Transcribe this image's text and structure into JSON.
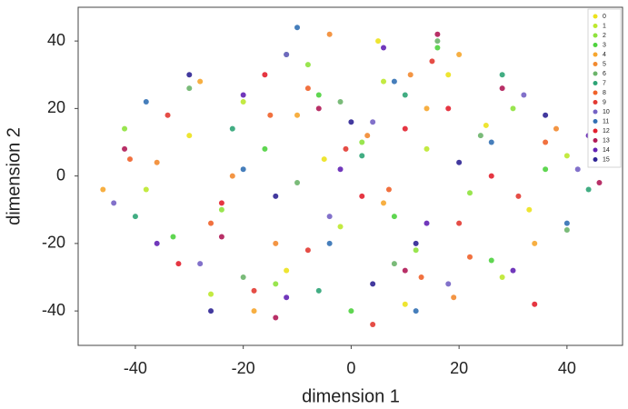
{
  "chart_data": {
    "type": "scatter",
    "x_label": "dimension 1",
    "y_label": "dimension 2",
    "xlim": [
      -50.6,
      50.3
    ],
    "ylim": [
      -50.2,
      50
    ],
    "xticks": [
      -40,
      -20,
      0,
      20,
      40
    ],
    "yticks": [
      -40,
      -20,
      0,
      20,
      40
    ],
    "grid": false,
    "legend": "upper right",
    "series": [
      {
        "name": "0",
        "color": "#ece21c",
        "x": [
          -30,
          -12,
          5,
          18,
          33,
          -5,
          10,
          25
        ],
        "values": [
          12,
          -28,
          40,
          30,
          -10,
          5,
          -38,
          15
        ]
      },
      {
        "name": "1",
        "color": "#bde82e",
        "x": [
          -38,
          -20,
          -2,
          14,
          28,
          40,
          6,
          -26
        ],
        "values": [
          -4,
          22,
          -15,
          8,
          -30,
          6,
          28,
          -35
        ]
      },
      {
        "name": "2",
        "color": "#8ee23c",
        "x": [
          -42,
          -24,
          -8,
          12,
          30,
          22,
          -14,
          2
        ],
        "values": [
          14,
          -10,
          33,
          -22,
          20,
          -5,
          -32,
          10
        ]
      },
      {
        "name": "3",
        "color": "#4ed23e",
        "x": [
          -33,
          -16,
          0,
          16,
          36,
          -6,
          8,
          26
        ],
        "values": [
          -18,
          8,
          -40,
          38,
          2,
          24,
          -12,
          -25
        ]
      },
      {
        "name": "4",
        "color": "#f6a62e",
        "x": [
          -46,
          -28,
          -10,
          6,
          20,
          34,
          -18,
          14
        ],
        "values": [
          -4,
          28,
          18,
          -8,
          36,
          -20,
          -40,
          20
        ]
      },
      {
        "name": "5",
        "color": "#f28a30",
        "x": [
          -36,
          -14,
          3,
          19,
          38,
          -4,
          11,
          -22
        ],
        "values": [
          4,
          -20,
          12,
          -36,
          14,
          42,
          30,
          0
        ]
      },
      {
        "name": "6",
        "color": "#6cb46a",
        "x": [
          -30,
          -10,
          8,
          24,
          40,
          -20,
          16,
          -2
        ],
        "values": [
          26,
          -2,
          -26,
          12,
          -16,
          -30,
          40,
          22
        ]
      },
      {
        "name": "7",
        "color": "#2ea476",
        "x": [
          -40,
          -22,
          -6,
          10,
          28,
          44,
          2,
          -12
        ],
        "values": [
          -12,
          14,
          -34,
          24,
          30,
          -4,
          6,
          36
        ]
      },
      {
        "name": "8",
        "color": "#f0622a",
        "x": [
          -41,
          -26,
          -8,
          7,
          22,
          36,
          -15,
          13
        ],
        "values": [
          5,
          -14,
          26,
          -4,
          -24,
          10,
          18,
          -30
        ]
      },
      {
        "name": "9",
        "color": "#e23a32",
        "x": [
          -34,
          -18,
          -1,
          15,
          31,
          -8,
          20,
          4
        ],
        "values": [
          18,
          -34,
          8,
          34,
          -6,
          -22,
          -14,
          -44
        ]
      },
      {
        "name": "10",
        "color": "#7462c4",
        "x": [
          -44,
          -28,
          -12,
          4,
          18,
          32,
          42,
          -4
        ],
        "values": [
          -8,
          -26,
          36,
          16,
          -32,
          24,
          2,
          -12
        ]
      },
      {
        "name": "11",
        "color": "#3270b4",
        "x": [
          -38,
          -20,
          -4,
          12,
          26,
          40,
          -10,
          8
        ],
        "values": [
          22,
          2,
          -20,
          -40,
          10,
          -14,
          44,
          28
        ]
      },
      {
        "name": "12",
        "color": "#e2202e",
        "x": [
          -32,
          -16,
          2,
          18,
          34,
          -24,
          10,
          26
        ],
        "values": [
          -26,
          30,
          -6,
          20,
          -38,
          -8,
          14,
          0
        ]
      },
      {
        "name": "13",
        "color": "#b01a56",
        "x": [
          -42,
          -24,
          -6,
          10,
          28,
          46,
          -14,
          16
        ],
        "values": [
          8,
          -18,
          20,
          -28,
          26,
          -2,
          -42,
          42
        ]
      },
      {
        "name": "14",
        "color": "#6222b4",
        "x": [
          -36,
          -20,
          -2,
          14,
          30,
          44,
          6,
          -12
        ],
        "values": [
          -20,
          24,
          2,
          -14,
          -28,
          12,
          38,
          -36
        ]
      },
      {
        "name": "15",
        "color": "#2e2494",
        "x": [
          -30,
          -14,
          4,
          20,
          36,
          -26,
          12,
          0
        ],
        "values": [
          30,
          -6,
          -32,
          4,
          18,
          -40,
          -20,
          16
        ]
      }
    ]
  }
}
